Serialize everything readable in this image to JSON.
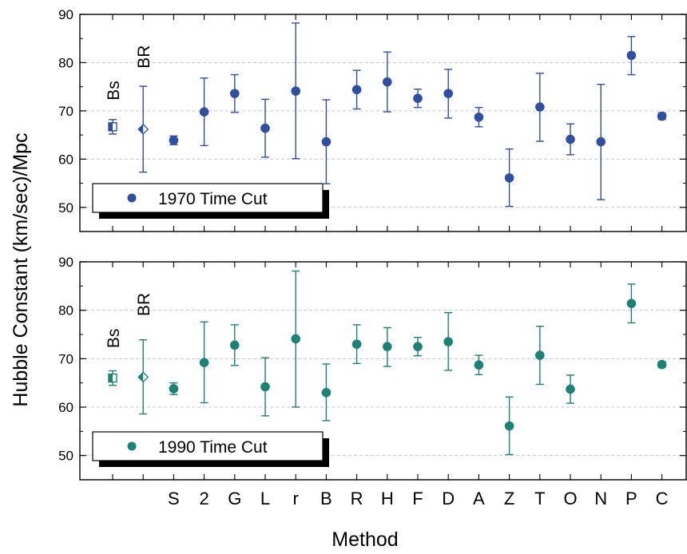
{
  "chart_data": {
    "type": "scatter",
    "xlabel": "Method",
    "ylabel": "Hubble Constant (km/sec)/Mpc",
    "ylim": [
      45,
      90
    ],
    "yticks": [
      50,
      60,
      70,
      80,
      90
    ],
    "grid": "horizontal dashed",
    "legend_position": "bottom-left",
    "categories": [
      "",
      "",
      "S",
      "2",
      "G",
      "L",
      "r",
      "B",
      "R",
      "H",
      "F",
      "D",
      "A",
      "Z",
      "T",
      "O",
      "N",
      "P",
      "C"
    ],
    "panels": [
      {
        "legend_label": "1970 Time Cut",
        "color": "#2f4fa3",
        "reference_labels": [
          "Bs",
          "BR"
        ],
        "points": [
          {
            "y": 66.7,
            "lo": 65.2,
            "hi": 68.2,
            "marker": "half-square"
          },
          {
            "y": 66.2,
            "lo": 57.3,
            "hi": 75.1,
            "marker": "half-diamond"
          },
          {
            "y": 63.9,
            "lo": 63.0,
            "hi": 64.8,
            "marker": "circle"
          },
          {
            "y": 69.8,
            "lo": 62.8,
            "hi": 76.8,
            "marker": "circle"
          },
          {
            "y": 73.6,
            "lo": 69.7,
            "hi": 77.5,
            "marker": "circle"
          },
          {
            "y": 66.4,
            "lo": 60.4,
            "hi": 72.4,
            "marker": "circle"
          },
          {
            "y": 74.1,
            "lo": 60.1,
            "hi": 88.2,
            "marker": "circle"
          },
          {
            "y": 63.6,
            "lo": 54.9,
            "hi": 72.3,
            "marker": "circle"
          },
          {
            "y": 74.4,
            "lo": 70.4,
            "hi": 78.4,
            "marker": "circle"
          },
          {
            "y": 76.0,
            "lo": 69.8,
            "hi": 82.2,
            "marker": "circle"
          },
          {
            "y": 72.6,
            "lo": 70.7,
            "hi": 74.5,
            "marker": "circle"
          },
          {
            "y": 73.6,
            "lo": 68.5,
            "hi": 78.6,
            "marker": "circle"
          },
          {
            "y": 68.7,
            "lo": 66.7,
            "hi": 70.7,
            "marker": "circle"
          },
          {
            "y": 56.1,
            "lo": 50.2,
            "hi": 62.1,
            "marker": "circle"
          },
          {
            "y": 70.8,
            "lo": 63.7,
            "hi": 77.8,
            "marker": "circle"
          },
          {
            "y": 64.1,
            "lo": 60.9,
            "hi": 67.3,
            "marker": "circle"
          },
          {
            "y": 63.6,
            "lo": 51.6,
            "hi": 75.5,
            "marker": "circle"
          },
          {
            "y": 81.5,
            "lo": 77.5,
            "hi": 85.4,
            "marker": "circle"
          },
          {
            "y": 68.9,
            "lo": 68.2,
            "hi": 69.6,
            "marker": "circle"
          }
        ]
      },
      {
        "legend_label": "1990 Time Cut",
        "color": "#1b8276",
        "reference_labels": [
          "Bs",
          "BR"
        ],
        "points": [
          {
            "y": 66.0,
            "lo": 64.5,
            "hi": 67.5,
            "marker": "half-square"
          },
          {
            "y": 66.2,
            "lo": 58.6,
            "hi": 73.9,
            "marker": "half-diamond"
          },
          {
            "y": 63.8,
            "lo": 62.6,
            "hi": 65.0,
            "marker": "circle"
          },
          {
            "y": 69.2,
            "lo": 60.9,
            "hi": 77.6,
            "marker": "circle"
          },
          {
            "y": 72.8,
            "lo": 68.6,
            "hi": 77.0,
            "marker": "circle"
          },
          {
            "y": 64.2,
            "lo": 58.2,
            "hi": 70.2,
            "marker": "circle"
          },
          {
            "y": 74.1,
            "lo": 60.0,
            "hi": 88.1,
            "marker": "circle"
          },
          {
            "y": 63.0,
            "lo": 57.2,
            "hi": 68.9,
            "marker": "circle"
          },
          {
            "y": 73.0,
            "lo": 69.0,
            "hi": 77.0,
            "marker": "circle"
          },
          {
            "y": 72.5,
            "lo": 68.4,
            "hi": 76.4,
            "marker": "circle"
          },
          {
            "y": 72.5,
            "lo": 70.6,
            "hi": 74.4,
            "marker": "circle"
          },
          {
            "y": 73.5,
            "lo": 67.6,
            "hi": 79.5,
            "marker": "circle"
          },
          {
            "y": 68.7,
            "lo": 66.7,
            "hi": 70.7,
            "marker": "circle"
          },
          {
            "y": 56.1,
            "lo": 50.2,
            "hi": 62.1,
            "marker": "circle"
          },
          {
            "y": 70.7,
            "lo": 64.7,
            "hi": 76.7,
            "marker": "circle"
          },
          {
            "y": 63.7,
            "lo": 60.8,
            "hi": 66.6,
            "marker": "circle"
          },
          null,
          {
            "y": 81.4,
            "lo": 77.4,
            "hi": 85.4,
            "marker": "circle"
          },
          {
            "y": 68.8,
            "lo": 68.2,
            "hi": 69.4,
            "marker": "circle"
          }
        ]
      }
    ]
  }
}
